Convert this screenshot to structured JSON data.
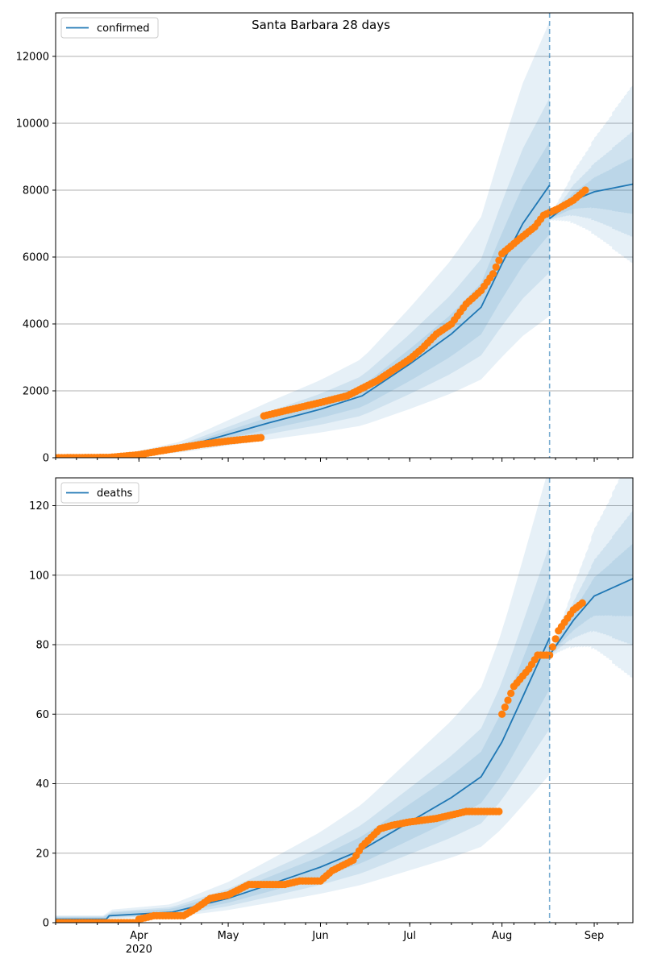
{
  "figure": {
    "title": "Santa Barbara 28 days",
    "colors": {
      "line": "#1f77b4",
      "points": "#ff7f0e",
      "band": "#1f77b4",
      "grid": "#b0b0b0"
    }
  },
  "chart_data": [
    {
      "type": "line",
      "title": "Santa Barbara 28 days",
      "xlabel": "",
      "ylabel": "",
      "x_axis": "date",
      "xlim": [
        "2020-03-04",
        "2020-09-14"
      ],
      "ylim": [
        0,
        13300
      ],
      "grid": "horizontal",
      "legend_position": "top-left",
      "legend": [
        "confirmed"
      ],
      "forecast_start": "2020-08-17",
      "x_tick_labels": [
        "Apr",
        "May",
        "Jun",
        "Jul",
        "Aug",
        "Sep"
      ],
      "x_tick_dates": [
        "2020-04-01",
        "2020-05-01",
        "2020-06-01",
        "2020-07-01",
        "2020-08-01",
        "2020-09-01"
      ],
      "x_tick_year": "2020",
      "y_ticks": [
        0,
        2000,
        4000,
        6000,
        8000,
        10000,
        12000
      ],
      "y_tick_labels": [
        "0",
        "2000",
        "4000",
        "6000",
        "8000",
        "10000",
        "12000"
      ],
      "series": [
        {
          "name": "confirmed",
          "kind": "model",
          "points": [
            [
              "2020-03-04",
              0
            ],
            [
              "2020-03-22",
              15
            ],
            [
              "2020-04-01",
              130
            ],
            [
              "2020-04-15",
              300
            ],
            [
              "2020-05-01",
              700
            ],
            [
              "2020-05-15",
              1050
            ],
            [
              "2020-06-01",
              1450
            ],
            [
              "2020-06-15",
              1850
            ],
            [
              "2020-07-01",
              2800
            ],
            [
              "2020-07-15",
              3700
            ],
            [
              "2020-07-25",
              4500
            ],
            [
              "2020-08-01",
              5800
            ],
            [
              "2020-08-08",
              7000
            ],
            [
              "2020-08-17",
              8150
            ]
          ],
          "forecast": [
            [
              "2020-08-17",
              7150
            ],
            [
              "2020-08-25",
              7700
            ],
            [
              "2020-09-01",
              7950
            ],
            [
              "2020-09-14",
              8180
            ]
          ]
        },
        {
          "name": "observed",
          "kind": "points",
          "points": [
            [
              "2020-03-04",
              0
            ],
            [
              "2020-03-22",
              10
            ],
            [
              "2020-04-01",
              90
            ],
            [
              "2020-04-08",
              200
            ],
            [
              "2020-04-15",
              300
            ],
            [
              "2020-04-22",
              400
            ],
            [
              "2020-05-01",
              500
            ],
            [
              "2020-05-12",
              600
            ],
            [
              "2020-05-13",
              1250
            ],
            [
              "2020-05-20",
              1400
            ],
            [
              "2020-06-01",
              1650
            ],
            [
              "2020-06-10",
              1850
            ],
            [
              "2020-06-20",
              2300
            ],
            [
              "2020-07-01",
              2950
            ],
            [
              "2020-07-05",
              3250
            ],
            [
              "2020-07-10",
              3700
            ],
            [
              "2020-07-15",
              4000
            ],
            [
              "2020-07-20",
              4600
            ],
            [
              "2020-07-25",
              5000
            ],
            [
              "2020-07-29",
              5500
            ],
            [
              "2020-08-01",
              6100
            ],
            [
              "2020-08-07",
              6550
            ],
            [
              "2020-08-12",
              6900
            ],
            [
              "2020-08-15",
              7250
            ],
            [
              "2020-08-20",
              7450
            ],
            [
              "2020-08-25",
              7700
            ],
            [
              "2020-08-29",
              8000
            ]
          ]
        }
      ]
    },
    {
      "type": "line",
      "title": "",
      "xlabel": "",
      "ylabel": "",
      "x_axis": "date",
      "xlim": [
        "2020-03-04",
        "2020-09-14"
      ],
      "ylim": [
        0,
        128
      ],
      "grid": "horizontal",
      "legend_position": "top-left",
      "legend": [
        "deaths"
      ],
      "forecast_start": "2020-08-17",
      "x_tick_labels": [
        "Apr",
        "May",
        "Jun",
        "Jul",
        "Aug",
        "Sep"
      ],
      "x_tick_dates": [
        "2020-04-01",
        "2020-05-01",
        "2020-06-01",
        "2020-07-01",
        "2020-08-01",
        "2020-09-01"
      ],
      "x_tick_year": "2020",
      "y_ticks": [
        0,
        20,
        40,
        60,
        80,
        100,
        120
      ],
      "y_tick_labels": [
        "0",
        "20",
        "40",
        "60",
        "80",
        "100",
        "120"
      ],
      "series": [
        {
          "name": "deaths",
          "kind": "model",
          "points": [
            [
              "2020-03-04",
              1
            ],
            [
              "2020-03-21",
              1
            ],
            [
              "2020-03-22",
              2
            ],
            [
              "2020-04-12",
              3
            ],
            [
              "2020-05-01",
              7
            ],
            [
              "2020-05-15",
              11
            ],
            [
              "2020-06-01",
              16
            ],
            [
              "2020-06-15",
              21
            ],
            [
              "2020-07-01",
              29
            ],
            [
              "2020-07-15",
              36
            ],
            [
              "2020-07-25",
              42
            ],
            [
              "2020-08-01",
              52
            ],
            [
              "2020-08-08",
              65
            ],
            [
              "2020-08-17",
              82
            ]
          ],
          "forecast": [
            [
              "2020-08-17",
              77
            ],
            [
              "2020-08-25",
              87
            ],
            [
              "2020-09-01",
              94
            ],
            [
              "2020-09-14",
              99
            ]
          ]
        },
        {
          "name": "observed",
          "kind": "points",
          "points": [
            [
              "2020-03-04",
              0
            ],
            [
              "2020-03-31",
              0
            ],
            [
              "2020-04-01",
              1
            ],
            [
              "2020-04-06",
              2
            ],
            [
              "2020-04-16",
              2
            ],
            [
              "2020-04-20",
              4
            ],
            [
              "2020-04-25",
              7
            ],
            [
              "2020-05-01",
              8
            ],
            [
              "2020-05-08",
              11
            ],
            [
              "2020-05-20",
              11
            ],
            [
              "2020-05-25",
              12
            ],
            [
              "2020-06-01",
              12
            ],
            [
              "2020-06-05",
              15
            ],
            [
              "2020-06-12",
              18
            ],
            [
              "2020-06-15",
              22
            ],
            [
              "2020-06-21",
              27
            ],
            [
              "2020-06-25",
              28
            ],
            [
              "2020-07-01",
              29
            ],
            [
              "2020-07-10",
              30
            ],
            [
              "2020-07-15",
              31
            ],
            [
              "2020-07-20",
              32
            ],
            [
              "2020-07-31",
              32
            ],
            [
              "2020-08-01",
              60
            ],
            [
              "2020-08-05",
              68
            ],
            [
              "2020-08-10",
              73
            ],
            [
              "2020-08-13",
              77
            ],
            [
              "2020-08-17",
              77
            ],
            [
              "2020-08-20",
              84
            ],
            [
              "2020-08-25",
              90
            ],
            [
              "2020-08-28",
              92
            ]
          ]
        }
      ]
    }
  ]
}
